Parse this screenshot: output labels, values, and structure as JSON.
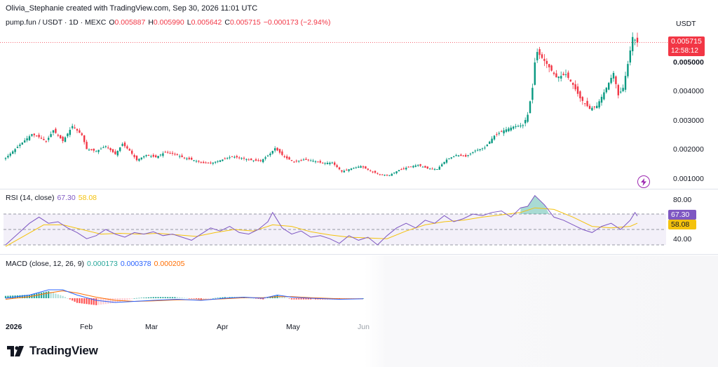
{
  "credit": "Olivia_Stephanie created with TradingView.com, Sep 30, 2026 11:01 UTC",
  "legend": {
    "symbol": "pump.fun / USDT · 1D · MEXC",
    "o_label": "O",
    "o": "0.005887",
    "h_label": "H",
    "h": "0.005990",
    "l_label": "L",
    "l": "0.005642",
    "c_label": "C",
    "c": "0.005715",
    "change": "−0.000173 (−2.94%)"
  },
  "currency": "USDT",
  "price_tag": {
    "price": "0.005715",
    "countdown": "12:58:12"
  },
  "colors": {
    "up": "#089981",
    "down": "#f23645",
    "rsi": "#7e57c2",
    "rsi_ma": "#f4c20d",
    "macd_hist": "#26a69a",
    "macd": "#2962ff",
    "signal": "#ff6d00"
  },
  "price_axis": [
    "0.005000",
    "0.004000",
    "0.003000",
    "0.002000",
    "0.001000"
  ],
  "rsi": {
    "label": "RSI (14, close)",
    "value": "67.30",
    "ma": "58.08",
    "axis": [
      "80.00",
      "40.00"
    ]
  },
  "macd": {
    "label": "MACD (close, 12, 26, 9)",
    "hist": "0.000173",
    "macd": "0.000378",
    "signal": "0.000205"
  },
  "time_axis": [
    "2026",
    "Feb",
    "Mar",
    "Apr",
    "May",
    "Jun"
  ],
  "logo_text": "TradingView",
  "chart_data": {
    "type": "candlestick",
    "symbol": "pump.fun / USDT",
    "interval": "1D",
    "price_ylim": [
      0.0008,
      0.0062
    ],
    "close_path": [
      [
        0,
        0.00185
      ],
      [
        6,
        0.0023
      ],
      [
        11,
        0.00265
      ],
      [
        14,
        0.00255
      ],
      [
        17,
        0.0024
      ],
      [
        20,
        0.00278
      ],
      [
        24,
        0.00242
      ],
      [
        28,
        0.00292
      ],
      [
        32,
        0.00262
      ],
      [
        34,
        0.00215
      ],
      [
        38,
        0.00208
      ],
      [
        42,
        0.00225
      ],
      [
        46,
        0.00198
      ],
      [
        49,
        0.00232
      ],
      [
        52,
        0.0021
      ],
      [
        55,
        0.00178
      ],
      [
        59,
        0.00195
      ],
      [
        63,
        0.00188
      ],
      [
        67,
        0.00205
      ],
      [
        71,
        0.00198
      ],
      [
        75,
        0.00185
      ],
      [
        79,
        0.00178
      ],
      [
        83,
        0.00168
      ],
      [
        87,
        0.0017
      ],
      [
        91,
        0.0018
      ],
      [
        95,
        0.0019
      ],
      [
        99,
        0.00185
      ],
      [
        103,
        0.00178
      ],
      [
        107,
        0.00175
      ],
      [
        111,
        0.002
      ],
      [
        113,
        0.00218
      ],
      [
        117,
        0.00188
      ],
      [
        121,
        0.00172
      ],
      [
        125,
        0.0018
      ],
      [
        129,
        0.00176
      ],
      [
        133,
        0.00168
      ],
      [
        137,
        0.0017
      ],
      [
        141,
        0.0014
      ],
      [
        145,
        0.0015
      ],
      [
        149,
        0.00158
      ],
      [
        153,
        0.00142
      ],
      [
        157,
        0.0013
      ],
      [
        161,
        0.00128
      ],
      [
        165,
        0.00145
      ],
      [
        169,
        0.00155
      ],
      [
        173,
        0.00162
      ],
      [
        177,
        0.0015
      ],
      [
        181,
        0.00148
      ],
      [
        185,
        0.0018
      ],
      [
        189,
        0.00195
      ],
      [
        193,
        0.0019
      ],
      [
        197,
        0.0021
      ],
      [
        201,
        0.0022
      ],
      [
        205,
        0.0026
      ],
      [
        209,
        0.00278
      ],
      [
        213,
        0.0029
      ],
      [
        217,
        0.00295
      ],
      [
        219,
        0.0033
      ],
      [
        221,
        0.0042
      ],
      [
        222,
        0.00505
      ],
      [
        223,
        0.0054
      ],
      [
        227,
        0.005
      ],
      [
        231,
        0.00455
      ],
      [
        235,
        0.00465
      ],
      [
        238,
        0.0043
      ],
      [
        241,
        0.00385
      ],
      [
        245,
        0.0035
      ],
      [
        248,
        0.0036
      ],
      [
        252,
        0.0042
      ],
      [
        255,
        0.0047
      ],
      [
        257,
        0.00395
      ],
      [
        259,
        0.0042
      ],
      [
        261,
        0.005
      ],
      [
        263,
        0.0059
      ],
      [
        265,
        0.005715
      ]
    ],
    "rsi": {
      "ylim": [
        20,
        100
      ],
      "band": [
        30,
        70
      ],
      "series": [
        [
          0,
          30
        ],
        [
          5,
          44
        ],
        [
          10,
          58
        ],
        [
          14,
          66
        ],
        [
          18,
          58
        ],
        [
          22,
          60
        ],
        [
          26,
          52
        ],
        [
          30,
          46
        ],
        [
          34,
          38
        ],
        [
          38,
          42
        ],
        [
          42,
          50
        ],
        [
          46,
          44
        ],
        [
          50,
          40
        ],
        [
          54,
          46
        ],
        [
          58,
          44
        ],
        [
          62,
          47
        ],
        [
          66,
          42
        ],
        [
          70,
          44
        ],
        [
          74,
          40
        ],
        [
          78,
          36
        ],
        [
          82,
          44
        ],
        [
          86,
          52
        ],
        [
          90,
          48
        ],
        [
          94,
          54
        ],
        [
          98,
          46
        ],
        [
          102,
          44
        ],
        [
          106,
          50
        ],
        [
          110,
          60
        ],
        [
          112,
          72
        ],
        [
          116,
          52
        ],
        [
          120,
          44
        ],
        [
          124,
          48
        ],
        [
          128,
          40
        ],
        [
          132,
          42
        ],
        [
          136,
          38
        ],
        [
          140,
          32
        ],
        [
          144,
          42
        ],
        [
          148,
          36
        ],
        [
          152,
          40
        ],
        [
          156,
          30
        ],
        [
          160,
          42
        ],
        [
          164,
          52
        ],
        [
          168,
          58
        ],
        [
          172,
          52
        ],
        [
          176,
          62
        ],
        [
          180,
          58
        ],
        [
          184,
          68
        ],
        [
          188,
          60
        ],
        [
          192,
          64
        ],
        [
          196,
          70
        ],
        [
          200,
          68
        ],
        [
          204,
          72
        ],
        [
          208,
          74
        ],
        [
          212,
          66
        ],
        [
          216,
          78
        ],
        [
          219,
          80
        ],
        [
          222,
          94
        ],
        [
          226,
          82
        ],
        [
          230,
          66
        ],
        [
          234,
          62
        ],
        [
          238,
          56
        ],
        [
          242,
          50
        ],
        [
          246,
          46
        ],
        [
          250,
          54
        ],
        [
          254,
          58
        ],
        [
          258,
          50
        ],
        [
          262,
          62
        ],
        [
          264,
          72
        ],
        [
          265,
          67.3
        ]
      ],
      "ma": [
        [
          0,
          28
        ],
        [
          8,
          42
        ],
        [
          16,
          56
        ],
        [
          24,
          56
        ],
        [
          32,
          50
        ],
        [
          40,
          44
        ],
        [
          48,
          45
        ],
        [
          56,
          44
        ],
        [
          64,
          45
        ],
        [
          72,
          43
        ],
        [
          80,
          41
        ],
        [
          88,
          46
        ],
        [
          96,
          50
        ],
        [
          104,
          48
        ],
        [
          112,
          56
        ],
        [
          120,
          54
        ],
        [
          128,
          47
        ],
        [
          136,
          43
        ],
        [
          144,
          40
        ],
        [
          152,
          39
        ],
        [
          160,
          38
        ],
        [
          168,
          48
        ],
        [
          176,
          56
        ],
        [
          184,
          60
        ],
        [
          192,
          62
        ],
        [
          200,
          66
        ],
        [
          208,
          69
        ],
        [
          216,
          72
        ],
        [
          222,
          78
        ],
        [
          230,
          76
        ],
        [
          238,
          66
        ],
        [
          246,
          54
        ],
        [
          254,
          52
        ],
        [
          262,
          54
        ],
        [
          265,
          58.08
        ]
      ]
    },
    "macd": {
      "ylim": [
        -0.0004,
        0.0006
      ],
      "macd": [
        [
          0,
          0.0
        ],
        [
          10,
          6e-05
        ],
        [
          18,
          0.00016
        ],
        [
          24,
          0.00016
        ],
        [
          30,
          6e-05
        ],
        [
          38,
          -4e-05
        ],
        [
          46,
          -8e-05
        ],
        [
          54,
          -6e-05
        ],
        [
          62,
          -4e-05
        ],
        [
          72,
          -2e-05
        ],
        [
          82,
          -4e-05
        ],
        [
          92,
          0.0
        ],
        [
          100,
          2e-05
        ],
        [
          108,
          0.0
        ],
        [
          114,
          6e-05
        ],
        [
          120,
          2e-05
        ],
        [
          128,
          0.0
        ],
        [
          140,
          -2e-05
        ],
        [
          150,
          -1e-05
        ]
      ],
      "signal": [
        [
          0,
          -2e-05
        ],
        [
          10,
          3e-05
        ],
        [
          18,
          0.0001
        ],
        [
          24,
          0.00014
        ],
        [
          30,
          0.0001
        ],
        [
          38,
          2e-05
        ],
        [
          46,
          -4e-05
        ],
        [
          54,
          -6e-05
        ],
        [
          62,
          -5e-05
        ],
        [
          72,
          -3e-05
        ],
        [
          82,
          -3e-05
        ],
        [
          92,
          -1e-05
        ],
        [
          100,
          1e-05
        ],
        [
          108,
          1e-05
        ],
        [
          114,
          3e-05
        ],
        [
          120,
          3e-05
        ],
        [
          128,
          1e-05
        ],
        [
          140,
          -1e-05
        ],
        [
          150,
          -1e-05
        ]
      ]
    }
  }
}
